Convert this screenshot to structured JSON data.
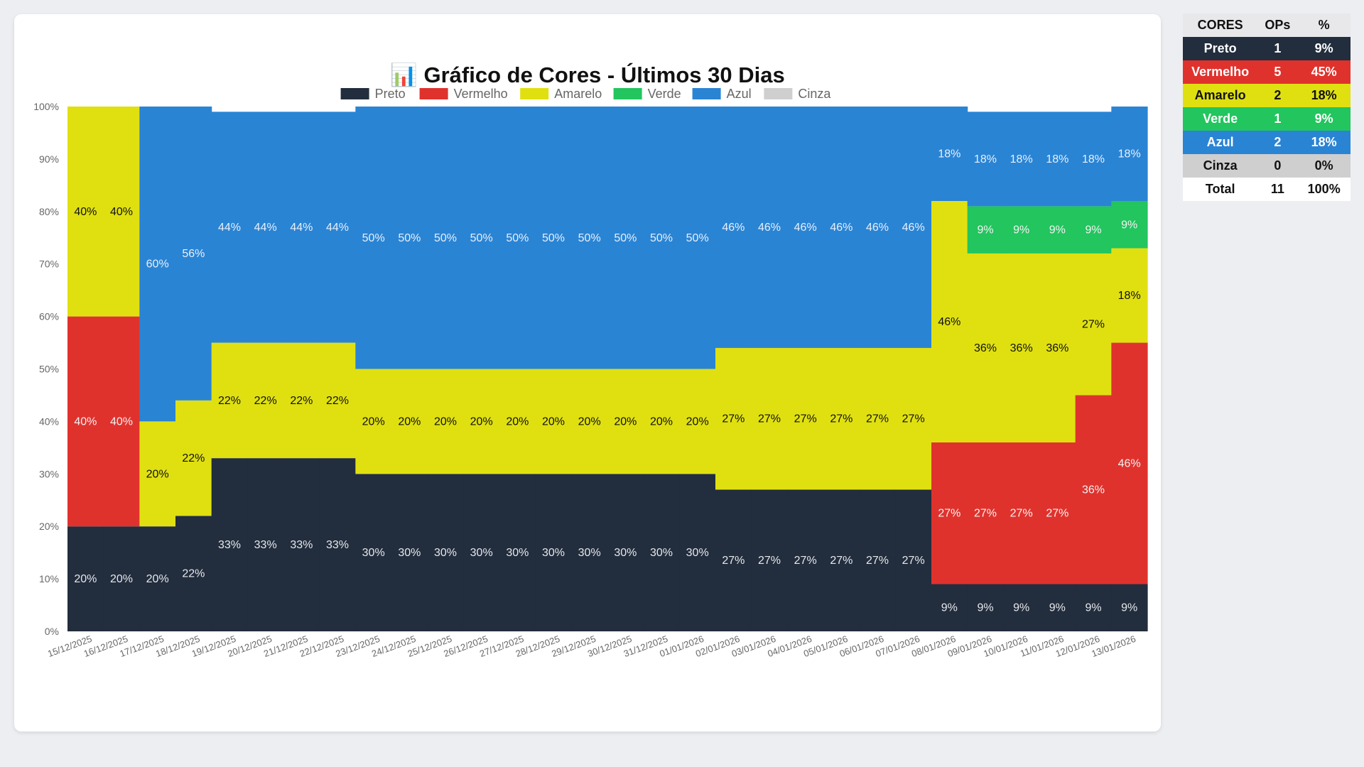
{
  "title": "📊 Gráfico de Cores - Últimos 30 Dias",
  "chart_data": {
    "type": "bar",
    "stacked": true,
    "title": "📊 Gráfico de Cores - Últimos 30 Dias",
    "ylim": [
      0,
      100
    ],
    "y_unit": "%",
    "y_ticks": [
      "0%",
      "10%",
      "20%",
      "30%",
      "40%",
      "50%",
      "60%",
      "70%",
      "80%",
      "90%",
      "100%"
    ],
    "legend_position": "top",
    "grid": false,
    "categories": [
      "15/12/2025",
      "16/12/2025",
      "17/12/2025",
      "18/12/2025",
      "19/12/2025",
      "20/12/2025",
      "21/12/2025",
      "22/12/2025",
      "23/12/2025",
      "24/12/2025",
      "25/12/2025",
      "26/12/2025",
      "27/12/2025",
      "28/12/2025",
      "29/12/2025",
      "30/12/2025",
      "31/12/2025",
      "01/01/2026",
      "02/01/2026",
      "03/01/2026",
      "04/01/2026",
      "05/01/2026",
      "06/01/2026",
      "07/01/2026",
      "08/01/2026",
      "09/01/2026",
      "10/01/2026",
      "11/01/2026",
      "12/01/2026",
      "13/01/2026"
    ],
    "series": [
      {
        "name": "Preto",
        "color": "#222d3d",
        "label_color": "#e6e8ec",
        "values": [
          20,
          20,
          20,
          22,
          33,
          33,
          33,
          33,
          30,
          30,
          30,
          30,
          30,
          30,
          30,
          30,
          30,
          30,
          27,
          27,
          27,
          27,
          27,
          27,
          9,
          9,
          9,
          9,
          9,
          9
        ]
      },
      {
        "name": "Vermelho",
        "color": "#e0322d",
        "label_color": "#f3f3f3",
        "values": [
          40,
          40,
          0,
          0,
          0,
          0,
          0,
          0,
          0,
          0,
          0,
          0,
          0,
          0,
          0,
          0,
          0,
          0,
          0,
          0,
          0,
          0,
          0,
          0,
          27,
          27,
          27,
          27,
          36,
          46
        ]
      },
      {
        "name": "Amarelo",
        "color": "#e0e011",
        "label_color": "#111111",
        "values": [
          40,
          40,
          20,
          22,
          22,
          22,
          22,
          22,
          20,
          20,
          20,
          20,
          20,
          20,
          20,
          20,
          20,
          20,
          27,
          27,
          27,
          27,
          27,
          27,
          46,
          36,
          36,
          36,
          27,
          18
        ]
      },
      {
        "name": "Verde",
        "color": "#22c55e",
        "label_color": "#f3f3f3",
        "values": [
          0,
          0,
          0,
          0,
          0,
          0,
          0,
          0,
          0,
          0,
          0,
          0,
          0,
          0,
          0,
          0,
          0,
          0,
          0,
          0,
          0,
          0,
          0,
          0,
          0,
          9,
          9,
          9,
          9,
          9
        ]
      },
      {
        "name": "Azul",
        "color": "#2a84d4",
        "label_color": "#e8f0fa",
        "values": [
          0,
          0,
          60,
          56,
          44,
          44,
          44,
          44,
          50,
          50,
          50,
          50,
          50,
          50,
          50,
          50,
          50,
          50,
          46,
          46,
          46,
          46,
          46,
          46,
          18,
          18,
          18,
          18,
          18,
          18
        ]
      },
      {
        "name": "Cinza",
        "color": "#cfcfcf",
        "label_color": "#111111",
        "values": [
          0,
          0,
          0,
          0,
          0,
          0,
          0,
          0,
          0,
          0,
          0,
          0,
          0,
          0,
          0,
          0,
          0,
          0,
          0,
          0,
          0,
          0,
          0,
          0,
          0,
          0,
          0,
          0,
          0,
          0
        ]
      }
    ]
  },
  "summary": {
    "headers": [
      "CORES",
      "OPs",
      "%"
    ],
    "rows": [
      {
        "cor": "Preto",
        "ops": "1",
        "pct": "9%",
        "bg": "#222d3d",
        "fg": "#ffffff"
      },
      {
        "cor": "Vermelho",
        "ops": "5",
        "pct": "45%",
        "bg": "#e0322d",
        "fg": "#ffffff"
      },
      {
        "cor": "Amarelo",
        "ops": "2",
        "pct": "18%",
        "bg": "#e0e011",
        "fg": "#111111"
      },
      {
        "cor": "Verde",
        "ops": "1",
        "pct": "9%",
        "bg": "#22c55e",
        "fg": "#ffffff"
      },
      {
        "cor": "Azul",
        "ops": "2",
        "pct": "18%",
        "bg": "#2a84d4",
        "fg": "#ffffff"
      },
      {
        "cor": "Cinza",
        "ops": "0",
        "pct": "0%",
        "bg": "#cfcfcf",
        "fg": "#111111"
      },
      {
        "cor": "Total",
        "ops": "11",
        "pct": "100%",
        "bg": "#ffffff",
        "fg": "#111111"
      }
    ]
  }
}
